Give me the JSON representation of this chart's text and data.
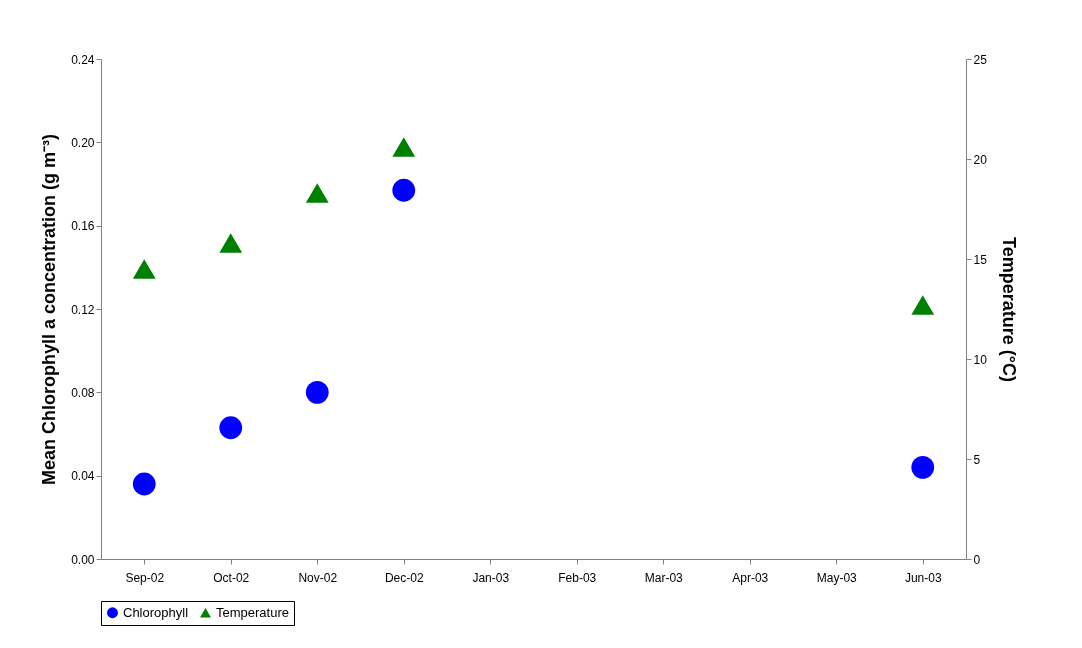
{
  "chart_data": {
    "type": "scatter",
    "categories": [
      "Sep-02",
      "Oct-02",
      "Nov-02",
      "Dec-02",
      "Jan-03",
      "Feb-03",
      "Mar-03",
      "Apr-03",
      "May-03",
      "Jun-03"
    ],
    "ylabel": "Mean Chlorophyll a concentration (g m⁻³)",
    "y2label": "Temperature (°C)",
    "ylim": [
      0,
      0.24
    ],
    "yticks": [
      {
        "value": 0,
        "label": "0.00"
      },
      {
        "value": 0.04,
        "label": "0.04"
      },
      {
        "value": 0.08,
        "label": "0.08"
      },
      {
        "value": 0.12,
        "label": "0.12"
      },
      {
        "value": 0.16,
        "label": "0.16"
      },
      {
        "value": 0.2,
        "label": "0.20"
      },
      {
        "value": 0.24,
        "label": "0.24"
      }
    ],
    "y2lim": [
      0,
      25
    ],
    "y2ticks": [
      0,
      5,
      10,
      15,
      20,
      25
    ],
    "series": [
      {
        "name": "Chlorophyll",
        "color": "#0000ff",
        "marker": "circle",
        "values": [
          0.036,
          0.063,
          0.08,
          0.177,
          null,
          null,
          null,
          null,
          null,
          0.044
        ]
      },
      {
        "name": "Temperature",
        "color": "#008000",
        "marker": "triangle",
        "axis": "y2",
        "values": [
          14.5,
          15.8,
          18.3,
          20.6,
          null,
          null,
          null,
          null,
          null,
          12.7
        ]
      }
    ],
    "legend": "bottom",
    "grid": false
  }
}
